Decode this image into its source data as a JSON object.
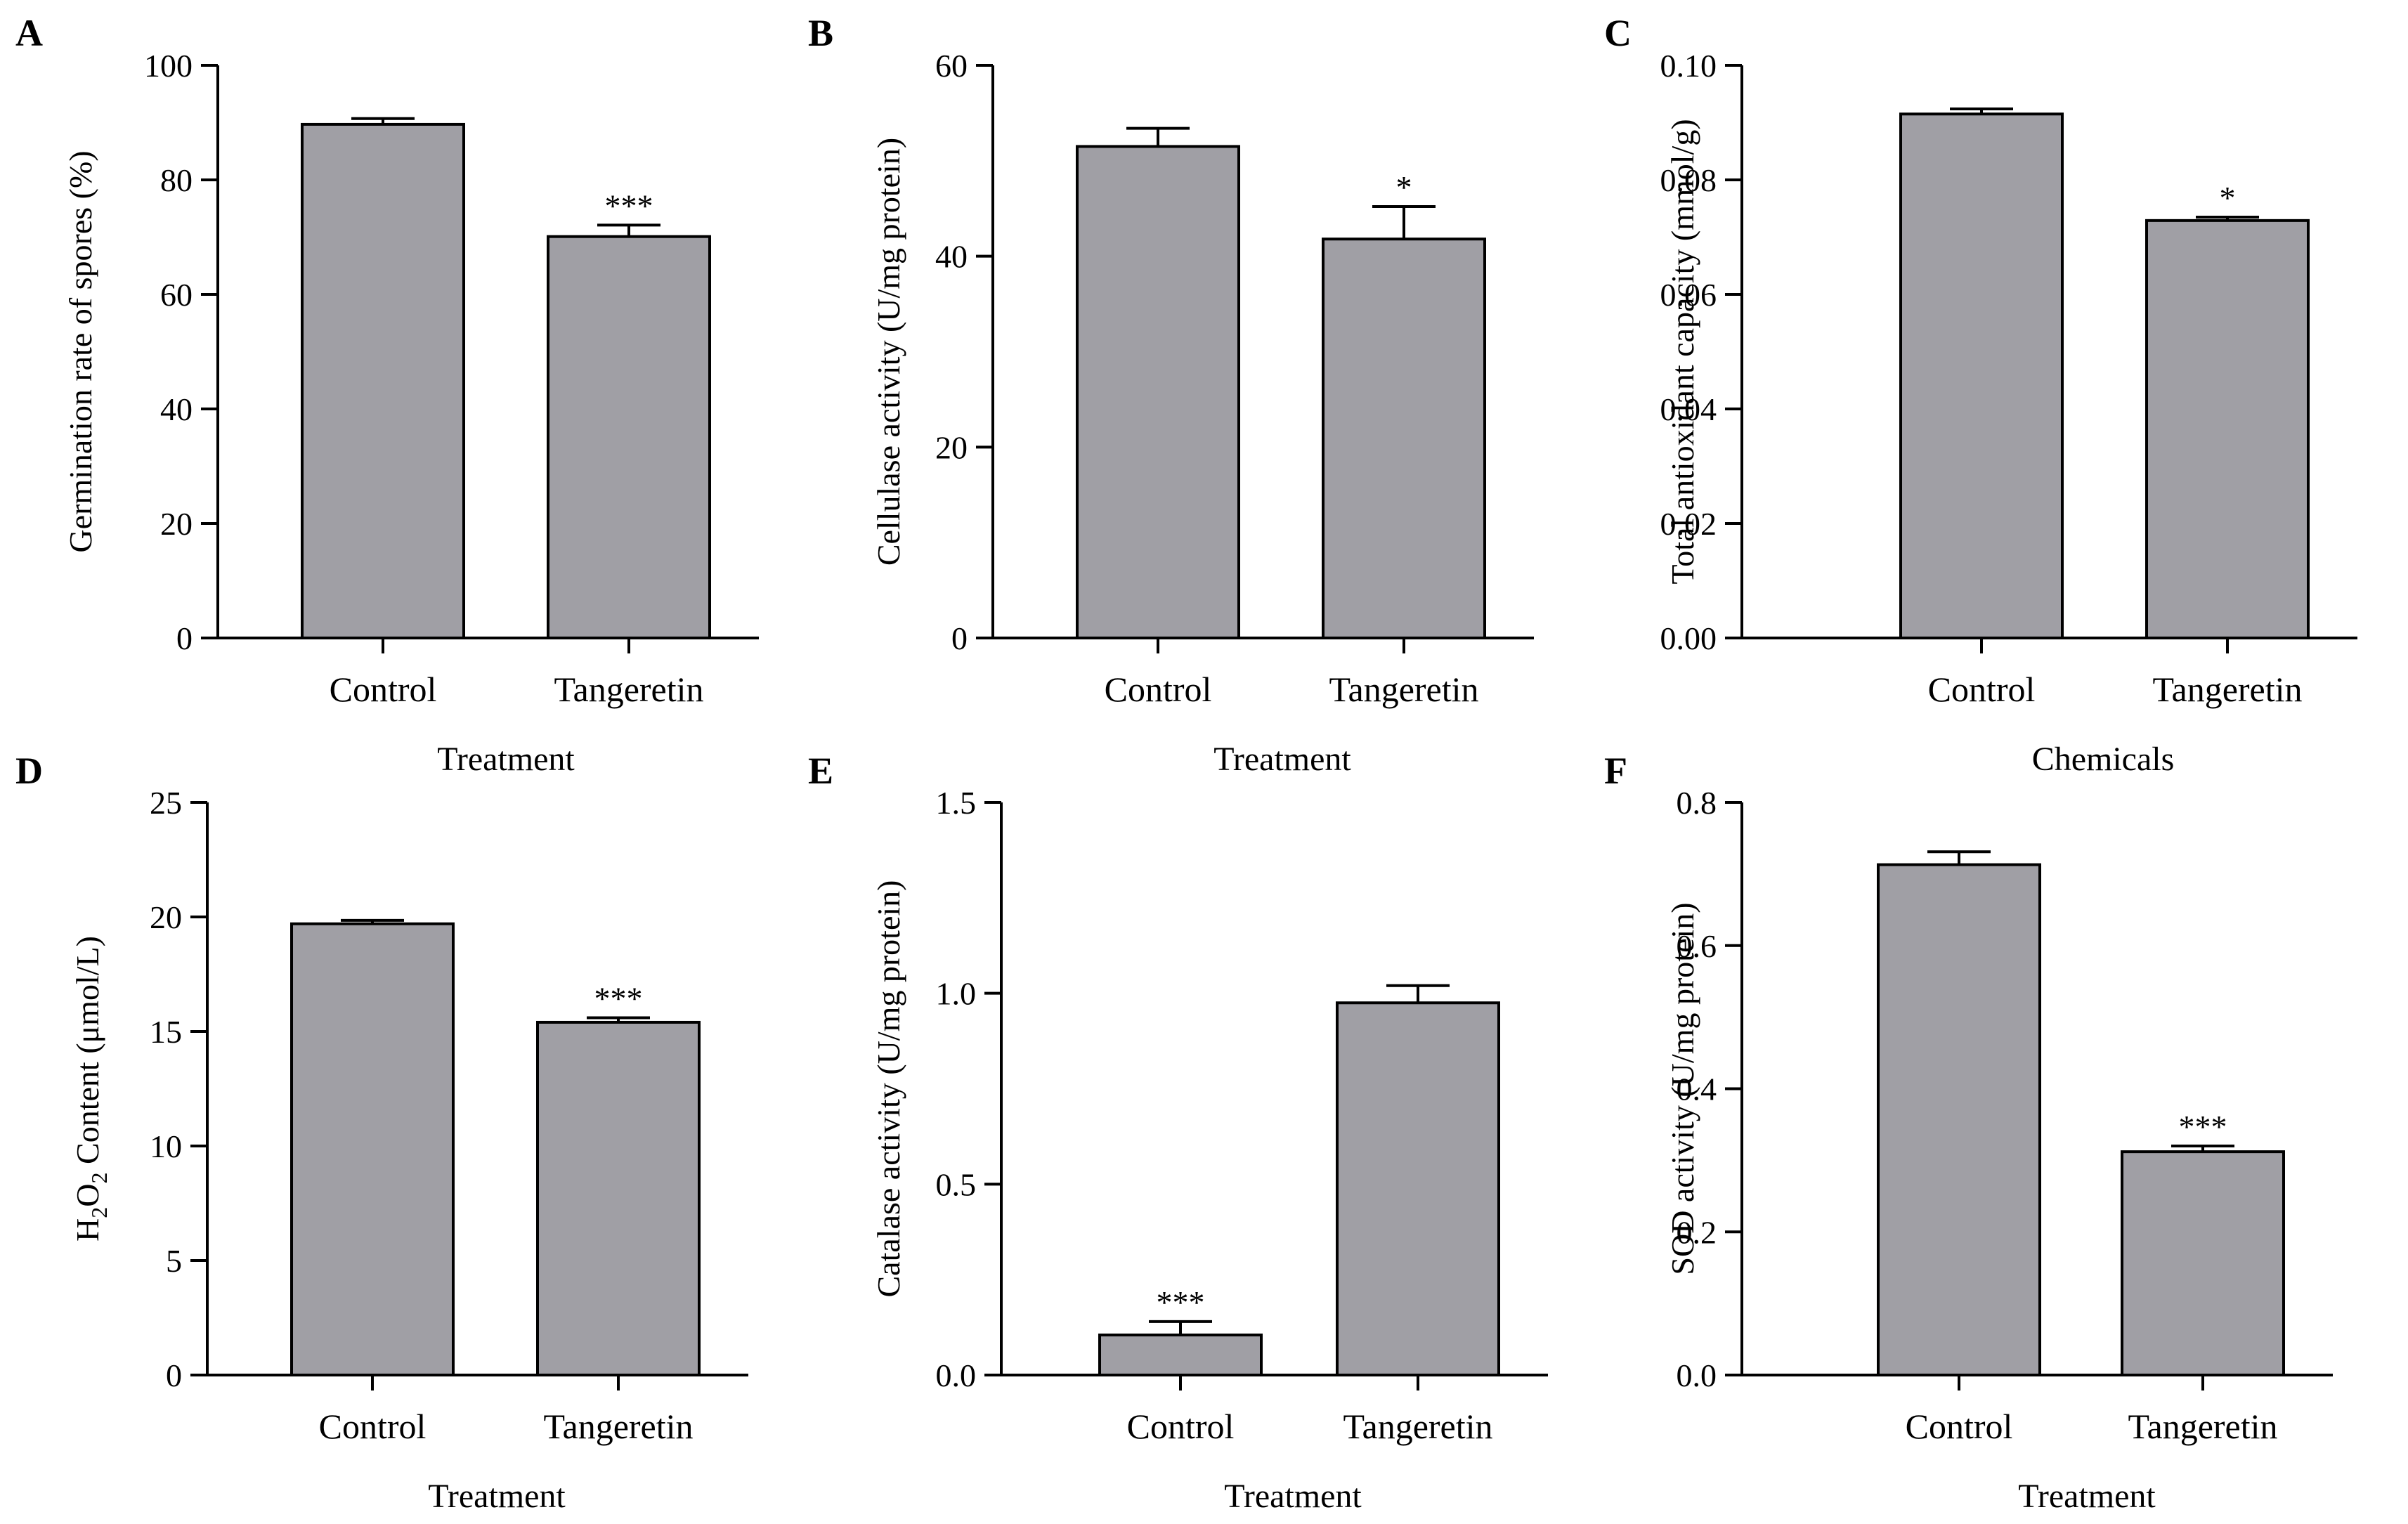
{
  "chart_data": [
    {
      "type": "bar",
      "panel": "A",
      "ylabel": "Germination rate of spores (%)",
      "xlabel": "Treatment",
      "categories": [
        "Control",
        "Tangeretin"
      ],
      "values": [
        89.7,
        70.1
      ],
      "errors": [
        1.0,
        2.0
      ],
      "significance": [
        "",
        "***"
      ],
      "ylim": [
        0,
        100
      ],
      "yticks": [
        "0",
        "20",
        "40",
        "60",
        "80",
        "100"
      ]
    },
    {
      "type": "bar",
      "panel": "B",
      "ylabel": "Cellulase activity (U/mg protein)",
      "xlabel": "Treatment",
      "categories": [
        "Control",
        "Tangeretin"
      ],
      "values": [
        51.5,
        41.8
      ],
      "errors": [
        1.9,
        3.4
      ],
      "significance": [
        "",
        "*"
      ],
      "ylim": [
        0,
        60
      ],
      "yticks": [
        "0",
        "20",
        "40",
        "60"
      ]
    },
    {
      "type": "bar",
      "panel": "C",
      "ylabel": "Total antioxidant capacity (mmol/g)",
      "xlabel": "Chemicals",
      "categories": [
        "Control",
        "Tangeretin"
      ],
      "values": [
        0.0915,
        0.0729
      ],
      "errors": [
        0.0009,
        0.0006
      ],
      "significance": [
        "",
        "*"
      ],
      "ylim": [
        0,
        0.1
      ],
      "yticks": [
        "0.00",
        "0.02",
        "0.04",
        "0.06",
        "0.08",
        "0.10"
      ]
    },
    {
      "type": "bar",
      "panel": "D",
      "ylabel": "H2O2 Content (μmol/L)",
      "xlabel": "Treatment",
      "categories": [
        "Control",
        "Tangeretin"
      ],
      "values": [
        19.7,
        15.4
      ],
      "errors": [
        0.15,
        0.2
      ],
      "significance": [
        "",
        "***"
      ],
      "ylim": [
        0,
        25
      ],
      "yticks": [
        "0",
        "5",
        "10",
        "15",
        "20",
        "25"
      ]
    },
    {
      "type": "bar",
      "panel": "E",
      "ylabel": "Catalase activity (U/mg protein)",
      "xlabel": "Treatment",
      "categories": [
        "Control",
        "Tangeretin"
      ],
      "values": [
        0.105,
        0.975
      ],
      "errors": [
        0.035,
        0.045
      ],
      "significance": [
        "***",
        ""
      ],
      "ylim": [
        0,
        1.5
      ],
      "yticks": [
        "0.0",
        "0.5",
        "1.0",
        "1.5"
      ]
    },
    {
      "type": "bar",
      "panel": "F",
      "ylabel": "SOD activity (U/mg protein)",
      "xlabel": "Treatment",
      "categories": [
        "Control",
        "Tangeretin"
      ],
      "values": [
        0.713,
        0.312
      ],
      "errors": [
        0.018,
        0.008
      ],
      "significance": [
        "",
        "***"
      ],
      "ylim": [
        0,
        0.8
      ],
      "yticks": [
        "0.0",
        "0.2",
        "0.4",
        "0.6",
        "0.8"
      ]
    }
  ]
}
